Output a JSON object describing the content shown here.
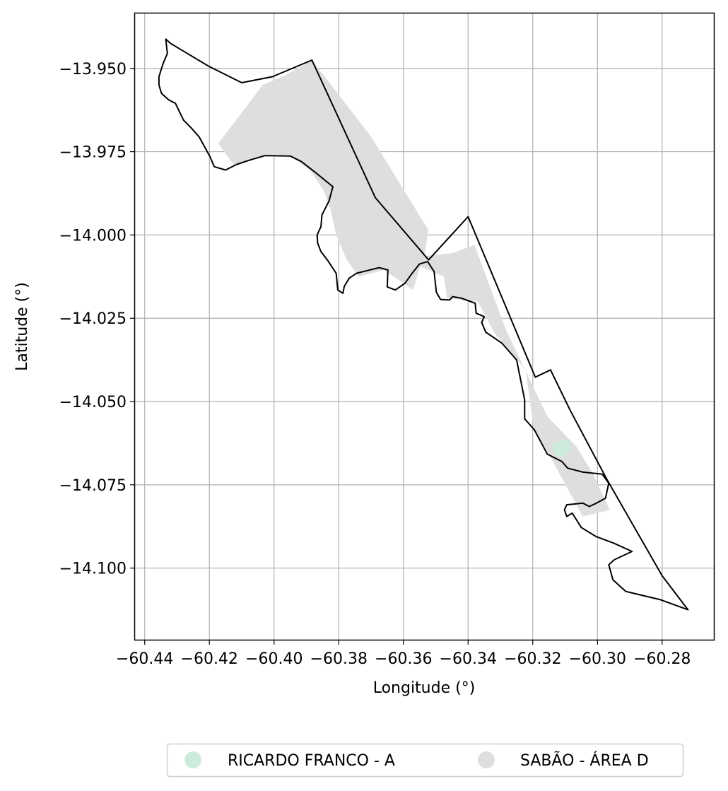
{
  "map": {
    "xlabel": "Longitude (°)",
    "ylabel": "Latitude (°)",
    "xlim": [
      -60.443,
      -60.264
    ],
    "ylim": [
      -14.1215,
      -13.9335
    ],
    "grid": true,
    "x_ticks": [
      {
        "value": -60.44,
        "label": "−60.44"
      },
      {
        "value": -60.42,
        "label": "−60.42"
      },
      {
        "value": -60.4,
        "label": "−60.40"
      },
      {
        "value": -60.38,
        "label": "−60.38"
      },
      {
        "value": -60.36,
        "label": "−60.36"
      },
      {
        "value": -60.34,
        "label": "−60.34"
      },
      {
        "value": -60.32,
        "label": "−60.32"
      },
      {
        "value": -60.3,
        "label": "−60.30"
      },
      {
        "value": -60.28,
        "label": "−60.28"
      }
    ],
    "y_ticks": [
      {
        "value": -13.95,
        "label": "−13.950"
      },
      {
        "value": -13.975,
        "label": "−13.975"
      },
      {
        "value": -14.0,
        "label": "−14.000"
      },
      {
        "value": -14.025,
        "label": "−14.025"
      },
      {
        "value": -14.05,
        "label": "−14.050"
      },
      {
        "value": -14.075,
        "label": "−14.075"
      },
      {
        "value": -14.1,
        "label": "−14.100"
      }
    ],
    "layers": [
      {
        "name": "SABÃO - ÁREA D",
        "color": "#dedede",
        "polygon": [
          [
            -60.41725,
            -13.9725
          ],
          [
            -60.4035,
            -13.955
          ],
          [
            -60.3965,
            -13.952
          ],
          [
            -60.3883,
            -13.9475
          ],
          [
            -60.37,
            -13.9705
          ],
          [
            -60.3523,
            -13.9985
          ],
          [
            -60.3535,
            -14.0063
          ],
          [
            -60.345,
            -14.0055
          ],
          [
            -60.338,
            -14.003
          ],
          [
            -60.3285,
            -14.028
          ],
          [
            -60.3155,
            -14.0545
          ],
          [
            -60.3065,
            -14.0635
          ],
          [
            -60.3015,
            -14.0715
          ],
          [
            -60.2962,
            -14.0825
          ],
          [
            -60.3045,
            -14.0845
          ],
          [
            -60.3125,
            -14.0703
          ],
          [
            -60.3198,
            -14.0575
          ],
          [
            -60.3222,
            -14.0405
          ],
          [
            -60.3318,
            -14.0295
          ],
          [
            -60.337,
            -14.02
          ],
          [
            -60.3465,
            -14.019
          ],
          [
            -60.3475,
            -14.0125
          ],
          [
            -60.3548,
            -14.0095
          ],
          [
            -60.357,
            -14.0165
          ],
          [
            -60.366,
            -14.0105
          ],
          [
            -60.3738,
            -14.0125
          ],
          [
            -60.3775,
            -14.0075
          ],
          [
            -60.3808,
            -14.0
          ],
          [
            -60.3825,
            -13.9925
          ],
          [
            -60.3845,
            -13.987
          ],
          [
            -60.3885,
            -13.981
          ],
          [
            -60.395,
            -13.976
          ],
          [
            -60.4025,
            -13.976
          ],
          [
            -60.4125,
            -13.979
          ],
          [
            -60.41725,
            -13.9725
          ]
        ]
      },
      {
        "name": "RICARDO FRANCO - A",
        "color": "#cdebdd",
        "polygon": [
          [
            -60.3135,
            -14.0625
          ],
          [
            -60.3105,
            -14.0615
          ],
          [
            -60.3083,
            -14.062
          ],
          [
            -60.3085,
            -14.0645
          ],
          [
            -60.3108,
            -14.0668
          ],
          [
            -60.3128,
            -14.0663
          ],
          [
            -60.314,
            -14.0645
          ],
          [
            -60.3135,
            -14.0625
          ]
        ]
      }
    ],
    "outline": [
      [
        -60.4335,
        -13.9412
      ],
      [
        -60.432,
        -13.9425
      ],
      [
        -60.4203,
        -13.9493
      ],
      [
        -60.41,
        -13.9543
      ],
      [
        -60.4005,
        -13.9525
      ],
      [
        -60.3883,
        -13.9475
      ],
      [
        -60.3687,
        -13.9888
      ],
      [
        -60.3522,
        -14.0075
      ],
      [
        -60.34,
        -13.9945
      ],
      [
        -60.3192,
        -14.0427
      ],
      [
        -60.3145,
        -14.0405
      ],
      [
        -60.3085,
        -14.0525
      ],
      [
        -60.297,
        -14.0735
      ],
      [
        -60.28,
        -14.1023
      ],
      [
        -60.272,
        -14.1125
      ],
      [
        -60.2805,
        -14.1095
      ],
      [
        -60.2912,
        -14.107
      ],
      [
        -60.2952,
        -14.1035
      ],
      [
        -60.2965,
        -14.099
      ],
      [
        -60.2948,
        -14.0975
      ],
      [
        -60.2893,
        -14.095
      ],
      [
        -60.295,
        -14.0925
      ],
      [
        -60.3005,
        -14.0905
      ],
      [
        -60.305,
        -14.0878
      ],
      [
        -60.3078,
        -14.0835
      ],
      [
        -60.3095,
        -14.0845
      ],
      [
        -60.3102,
        -14.0825
      ],
      [
        -60.3095,
        -14.081
      ],
      [
        -60.3045,
        -14.0805
      ],
      [
        -60.3025,
        -14.0815
      ],
      [
        -60.3003,
        -14.0805
      ],
      [
        -60.2975,
        -14.079
      ],
      [
        -60.2965,
        -14.0745
      ],
      [
        -60.2985,
        -14.0718
      ],
      [
        -60.3045,
        -14.0712
      ],
      [
        -60.3092,
        -14.07
      ],
      [
        -60.311,
        -14.068
      ],
      [
        -60.3155,
        -14.0658
      ],
      [
        -60.3195,
        -14.0585
      ],
      [
        -60.3225,
        -14.0552
      ],
      [
        -60.3225,
        -14.0495
      ],
      [
        -60.325,
        -14.0375
      ],
      [
        -60.3295,
        -14.0325
      ],
      [
        -60.3345,
        -14.0292
      ],
      [
        -60.3358,
        -14.0263
      ],
      [
        -60.335,
        -14.0245
      ],
      [
        -60.3375,
        -14.0235
      ],
      [
        -60.3378,
        -14.0205
      ],
      [
        -60.342,
        -14.019
      ],
      [
        -60.3448,
        -14.0185
      ],
      [
        -60.3457,
        -14.0195
      ],
      [
        -60.3485,
        -14.0194
      ],
      [
        -60.3498,
        -14.0172
      ],
      [
        -60.3505,
        -14.011
      ],
      [
        -60.3525,
        -14.008
      ],
      [
        -60.355,
        -14.0087
      ],
      [
        -60.3573,
        -14.0115
      ],
      [
        -60.3595,
        -14.0145
      ],
      [
        -60.3625,
        -14.0165
      ],
      [
        -60.365,
        -14.0156
      ],
      [
        -60.3648,
        -14.0105
      ],
      [
        -60.3675,
        -14.0098
      ],
      [
        -60.3712,
        -14.0107
      ],
      [
        -60.3745,
        -14.0115
      ],
      [
        -60.3768,
        -14.013
      ],
      [
        -60.3783,
        -14.0155
      ],
      [
        -60.3787,
        -14.0175
      ],
      [
        -60.3803,
        -14.0165
      ],
      [
        -60.3808,
        -14.0115
      ],
      [
        -60.3835,
        -14.0075
      ],
      [
        -60.3855,
        -14.005
      ],
      [
        -60.3865,
        -14.0025
      ],
      [
        -60.3867,
        -14.0
      ],
      [
        -60.3855,
        -13.9975
      ],
      [
        -60.3852,
        -13.994
      ],
      [
        -60.383,
        -13.9898
      ],
      [
        -60.3818,
        -13.9855
      ],
      [
        -60.3875,
        -13.981
      ],
      [
        -60.3915,
        -13.978
      ],
      [
        -60.395,
        -13.9763
      ],
      [
        -60.4028,
        -13.9762
      ],
      [
        -60.4075,
        -13.9775
      ],
      [
        -60.4115,
        -13.9788
      ],
      [
        -60.415,
        -13.9805
      ],
      [
        -60.4185,
        -13.9795
      ],
      [
        -60.4198,
        -13.9765
      ],
      [
        -60.4215,
        -13.9735
      ],
      [
        -60.4232,
        -13.9705
      ],
      [
        -60.4255,
        -13.968
      ],
      [
        -60.428,
        -13.9655
      ],
      [
        -60.4305,
        -13.9605
      ],
      [
        -60.4325,
        -13.9595
      ],
      [
        -60.4348,
        -13.9575
      ],
      [
        -60.4356,
        -13.955
      ],
      [
        -60.4356,
        -13.9525
      ],
      [
        -60.4343,
        -13.9485
      ],
      [
        -60.433,
        -13.9455
      ],
      [
        -60.4335,
        -13.9412
      ]
    ]
  },
  "legend": {
    "items": [
      {
        "label": "RICARDO FRANCO - A",
        "color": "#cdebdd"
      },
      {
        "label": "SABÃO - ÁREA D",
        "color": "#dedede"
      }
    ]
  }
}
